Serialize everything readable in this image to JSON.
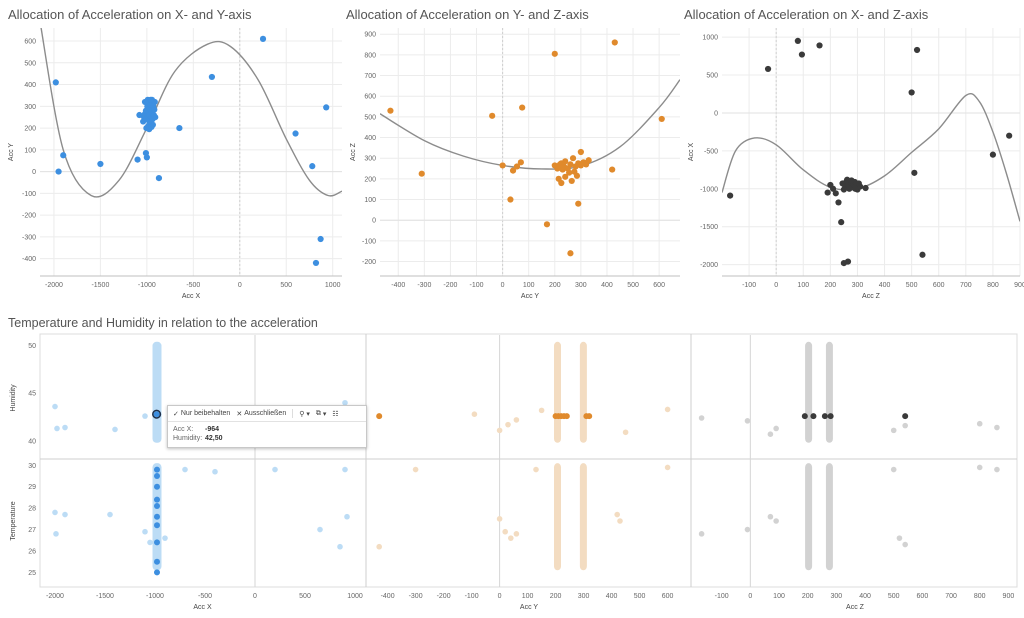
{
  "chart_data": [
    {
      "id": "xy",
      "type": "scatter",
      "title": "Allocation of Acceleration on X- and Y-axis",
      "xlabel": "Acc X",
      "ylabel": "Acc Y",
      "xlim": [
        -2150,
        1100
      ],
      "ylim": [
        -480,
        660
      ],
      "xticks": [
        -2000,
        -1500,
        -1000,
        -500,
        0,
        500,
        1000
      ],
      "yticks": [
        -400,
        -300,
        -200,
        -100,
        0,
        100,
        200,
        300,
        400,
        500,
        600
      ],
      "color": "#3d8fe0",
      "trend_color": "#8c8c8c",
      "trend": [
        [
          -2150,
          690
        ],
        [
          -1900,
          100
        ],
        [
          -1600,
          -110
        ],
        [
          -1300,
          -40
        ],
        [
          -1000,
          200
        ],
        [
          -700,
          460
        ],
        [
          -350,
          585
        ],
        [
          -100,
          575
        ],
        [
          200,
          420
        ],
        [
          500,
          150
        ],
        [
          750,
          -40
        ],
        [
          950,
          -110
        ],
        [
          1100,
          -90
        ]
      ],
      "points": [
        [
          -1980,
          410
        ],
        [
          -1950,
          0
        ],
        [
          -1900,
          75
        ],
        [
          -1500,
          35
        ],
        [
          -1100,
          55
        ],
        [
          -1080,
          260
        ],
        [
          -1010,
          85
        ],
        [
          -1000,
          65
        ],
        [
          -870,
          -30
        ],
        [
          -650,
          200
        ],
        [
          -300,
          435
        ],
        [
          250,
          610
        ],
        [
          600,
          175
        ],
        [
          780,
          25
        ],
        [
          820,
          -420
        ],
        [
          870,
          -310
        ],
        [
          930,
          295
        ],
        [
          -1040,
          230
        ],
        [
          -1030,
          250
        ],
        [
          -1020,
          265
        ],
        [
          -1010,
          280
        ],
        [
          -1000,
          245
        ],
        [
          -995,
          300
        ],
        [
          -990,
          320
        ],
        [
          -985,
          210
        ],
        [
          -980,
          235
        ],
        [
          -975,
          260
        ],
        [
          -970,
          290
        ],
        [
          -965,
          310
        ],
        [
          -960,
          225
        ],
        [
          -955,
          250
        ],
        [
          -950,
          275
        ],
        [
          -945,
          330
        ],
        [
          -940,
          240
        ],
        [
          -935,
          215
        ],
        [
          -930,
          300
        ],
        [
          -925,
          260
        ],
        [
          -920,
          285
        ],
        [
          -915,
          320
        ],
        [
          -910,
          250
        ],
        [
          -1005,
          200
        ],
        [
          -990,
          330
        ],
        [
          -960,
          330
        ],
        [
          -1020,
          320
        ],
        [
          -950,
          205
        ],
        [
          -975,
          195
        ]
      ]
    },
    {
      "id": "yz",
      "type": "scatter",
      "title": "Allocation of Acceleration on Y- and Z-axis",
      "xlabel": "Acc Y",
      "ylabel": "Acc Z",
      "xlim": [
        -470,
        680
      ],
      "ylim": [
        -270,
        930
      ],
      "xticks": [
        -400,
        -300,
        -200,
        -100,
        0,
        100,
        200,
        300,
        400,
        500,
        600
      ],
      "yticks": [
        -200,
        -100,
        0,
        100,
        200,
        300,
        400,
        500,
        600,
        700,
        800,
        900
      ],
      "color": "#e08a2c",
      "trend_color": "#8c8c8c",
      "trend": [
        [
          -470,
          515
        ],
        [
          -300,
          385
        ],
        [
          -150,
          310
        ],
        [
          0,
          265
        ],
        [
          150,
          248
        ],
        [
          300,
          262
        ],
        [
          450,
          355
        ],
        [
          600,
          545
        ],
        [
          680,
          680
        ]
      ],
      "points": [
        [
          -430,
          530
        ],
        [
          -310,
          225
        ],
        [
          -40,
          505
        ],
        [
          0,
          265
        ],
        [
          30,
          100
        ],
        [
          40,
          240
        ],
        [
          55,
          260
        ],
        [
          70,
          280
        ],
        [
          75,
          545
        ],
        [
          170,
          -20
        ],
        [
          200,
          805
        ],
        [
          225,
          275
        ],
        [
          220,
          255
        ],
        [
          260,
          -160
        ],
        [
          290,
          80
        ],
        [
          300,
          330
        ],
        [
          420,
          245
        ],
        [
          430,
          860
        ],
        [
          610,
          490
        ],
        [
          200,
          265
        ],
        [
          210,
          250
        ],
        [
          220,
          270
        ],
        [
          230,
          245
        ],
        [
          235,
          260
        ],
        [
          240,
          285
        ],
        [
          250,
          250
        ],
        [
          260,
          270
        ],
        [
          270,
          300
        ],
        [
          280,
          260
        ],
        [
          290,
          275
        ],
        [
          300,
          265
        ],
        [
          310,
          280
        ],
        [
          320,
          270
        ],
        [
          330,
          290
        ],
        [
          215,
          200
        ],
        [
          225,
          180
        ],
        [
          240,
          210
        ],
        [
          255,
          230
        ],
        [
          265,
          190
        ],
        [
          275,
          235
        ],
        [
          285,
          215
        ]
      ]
    },
    {
      "id": "xz",
      "type": "scatter",
      "title": "Allocation of Acceleration on X- and Z-axis",
      "xlabel": "Acc Z",
      "ylabel": "Acc X",
      "xlim": [
        -200,
        900
      ],
      "ylim": [
        -2150,
        1120
      ],
      "xticks": [
        -100,
        0,
        100,
        200,
        300,
        400,
        500,
        600,
        700,
        800,
        900
      ],
      "yticks": [
        -2000,
        -1500,
        -1000,
        -500,
        0,
        500,
        1000
      ],
      "color": "#3a3a3a",
      "trend_color": "#8c8c8c",
      "trend": [
        [
          -200,
          -1050
        ],
        [
          -150,
          -500
        ],
        [
          -80,
          -330
        ],
        [
          0,
          -420
        ],
        [
          100,
          -750
        ],
        [
          200,
          -980
        ],
        [
          300,
          -1000
        ],
        [
          400,
          -830
        ],
        [
          500,
          -520
        ],
        [
          600,
          -210
        ],
        [
          700,
          230
        ],
        [
          750,
          150
        ],
        [
          800,
          -250
        ],
        [
          850,
          -800
        ],
        [
          900,
          -1430
        ]
      ],
      "points": [
        [
          -170,
          -1090
        ],
        [
          -30,
          580
        ],
        [
          80,
          950
        ],
        [
          95,
          770
        ],
        [
          160,
          890
        ],
        [
          190,
          -1050
        ],
        [
          200,
          -950
        ],
        [
          210,
          -1000
        ],
        [
          220,
          -1060
        ],
        [
          230,
          -1180
        ],
        [
          240,
          -1440
        ],
        [
          250,
          -1980
        ],
        [
          265,
          -1960
        ],
        [
          330,
          -990
        ],
        [
          500,
          270
        ],
        [
          510,
          -790
        ],
        [
          520,
          830
        ],
        [
          540,
          -1870
        ],
        [
          800,
          -550
        ],
        [
          860,
          -300
        ],
        [
          245,
          -930
        ],
        [
          255,
          -970
        ],
        [
          260,
          -900
        ],
        [
          265,
          -950
        ],
        [
          270,
          -1000
        ],
        [
          275,
          -920
        ],
        [
          280,
          -980
        ],
        [
          285,
          -940
        ],
        [
          290,
          -910
        ],
        [
          295,
          -960
        ],
        [
          300,
          -1010
        ],
        [
          305,
          -930
        ],
        [
          310,
          -970
        ],
        [
          250,
          -1010
        ],
        [
          262,
          -880
        ],
        [
          278,
          -890
        ],
        [
          292,
          -1000
        ]
      ]
    },
    {
      "id": "th",
      "type": "scatter",
      "title": "Temperature and Humidity in relation to the acceleration",
      "panels": [
        {
          "xlabel": "Acc X",
          "xlim": [
            -2150,
            1100
          ],
          "xticks": [
            -2000,
            -1500,
            -1000,
            -500,
            0,
            500,
            1000
          ],
          "light": "#bcdcf5",
          "dark": "#3d8fe0",
          "band": [
            -1010,
            -950
          ],
          "humidity_points": [
            [
              -2000,
              43.6
            ],
            [
              -1980,
              41.3
            ],
            [
              -1900,
              41.4
            ],
            [
              -1400,
              41.2
            ],
            [
              -1100,
              42.6
            ],
            [
              -550,
              42.4
            ],
            [
              -400,
              42.3
            ],
            [
              900,
              44.0
            ],
            [
              950,
              42.6
            ],
            [
              -1000,
              42.8
            ],
            [
              -960,
              42.8
            ]
          ],
          "temperature_points": [
            [
              -2000,
              27.8
            ],
            [
              -1990,
              26.8
            ],
            [
              -1900,
              27.7
            ],
            [
              -1450,
              27.7
            ],
            [
              -1100,
              26.9
            ],
            [
              -1050,
              26.4
            ],
            [
              -900,
              26.6
            ],
            [
              -700,
              29.8
            ],
            [
              -400,
              29.7
            ],
            [
              200,
              29.8
            ],
            [
              650,
              27.0
            ],
            [
              850,
              26.2
            ],
            [
              900,
              29.8
            ],
            [
              920,
              27.6
            ],
            [
              -980,
              29.8
            ],
            [
              -980,
              29.2
            ],
            [
              -980,
              28.5
            ],
            [
              -980,
              28.0
            ],
            [
              -980,
              27.4
            ],
            [
              -980,
              26.6
            ],
            [
              -980,
              25.6
            ],
            [
              -980,
              25.0
            ]
          ],
          "dark_humidity": [
            [
              -984,
              42.8
            ]
          ]
        },
        {
          "xlabel": "Acc Y",
          "xlim": [
            -470,
            680
          ],
          "xticks": [
            -400,
            -300,
            -200,
            -100,
            0,
            100,
            200,
            300,
            400,
            500,
            600
          ],
          "light": "#f3dcc1",
          "dark": "#e08a2c",
          "band": [
            190,
            330
          ],
          "humidity_points": [
            [
              -430,
              42.6
            ],
            [
              -90,
              42.8
            ],
            [
              0,
              41.1
            ],
            [
              30,
              41.7
            ],
            [
              60,
              42.2
            ],
            [
              150,
              43.2
            ],
            [
              450,
              40.9
            ],
            [
              600,
              43.3
            ]
          ],
          "temperature_points": [
            [
              -430,
              26.2
            ],
            [
              -300,
              29.8
            ],
            [
              0,
              27.5
            ],
            [
              20,
              26.9
            ],
            [
              40,
              26.6
            ],
            [
              60,
              26.8
            ],
            [
              130,
              29.8
            ],
            [
              420,
              27.7
            ],
            [
              430,
              27.4
            ],
            [
              600,
              29.9
            ]
          ],
          "dark_humidity": [
            [
              -430,
              42.6
            ],
            [
              200,
              42.6
            ],
            [
              210,
              42.6
            ],
            [
              220,
              42.6
            ],
            [
              230,
              42.6
            ],
            [
              240,
              42.6
            ],
            [
              310,
              42.6
            ],
            [
              320,
              42.6
            ]
          ]
        },
        {
          "xlabel": "Acc Z",
          "xlim": [
            -200,
            930
          ],
          "xticks": [
            -100,
            0,
            100,
            200,
            300,
            400,
            500,
            600,
            700,
            800,
            900
          ],
          "light": "#d2d2d2",
          "dark": "#3a3a3a",
          "band": [
            190,
            300
          ],
          "humidity_points": [
            [
              -170,
              42.4
            ],
            [
              -10,
              42.1
            ],
            [
              70,
              40.7
            ],
            [
              90,
              41.3
            ],
            [
              500,
              41.1
            ],
            [
              540,
              41.6
            ],
            [
              800,
              41.8
            ],
            [
              860,
              41.4
            ]
          ],
          "temperature_points": [
            [
              -170,
              26.8
            ],
            [
              -10,
              27.0
            ],
            [
              70,
              27.6
            ],
            [
              90,
              27.4
            ],
            [
              500,
              29.8
            ],
            [
              520,
              26.6
            ],
            [
              540,
              26.3
            ],
            [
              800,
              29.9
            ],
            [
              860,
              29.8
            ]
          ],
          "dark_humidity": [
            [
              190,
              42.6
            ],
            [
              220,
              42.6
            ],
            [
              260,
              42.6
            ],
            [
              280,
              42.6
            ],
            [
              540,
              42.6
            ]
          ]
        }
      ],
      "humidity": {
        "label": "Humidity",
        "ylim": [
          38.2,
          50.8
        ],
        "yticks": [
          40,
          45,
          50
        ]
      },
      "temperature": {
        "label": "Temperature",
        "ylim": [
          24.6,
          30.2
        ],
        "yticks": [
          25,
          26,
          27,
          28,
          29,
          30
        ]
      }
    }
  ],
  "tooltip": {
    "keep_only": "Nur beibehalten",
    "exclude": "Ausschließen",
    "rows": [
      {
        "key": "Acc X:",
        "value": "-964"
      },
      {
        "key": "Humidity:",
        "value": "42,50"
      }
    ]
  }
}
